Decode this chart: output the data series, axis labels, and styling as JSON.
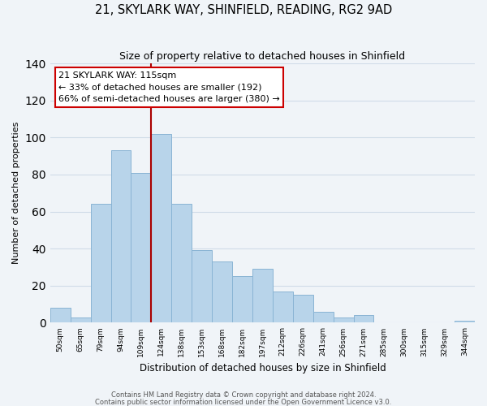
{
  "title": "21, SKYLARK WAY, SHINFIELD, READING, RG2 9AD",
  "subtitle": "Size of property relative to detached houses in Shinfield",
  "xlabel": "Distribution of detached houses by size in Shinfield",
  "ylabel": "Number of detached properties",
  "bar_labels": [
    "50sqm",
    "65sqm",
    "79sqm",
    "94sqm",
    "109sqm",
    "124sqm",
    "138sqm",
    "153sqm",
    "168sqm",
    "182sqm",
    "197sqm",
    "212sqm",
    "226sqm",
    "241sqm",
    "256sqm",
    "271sqm",
    "285sqm",
    "300sqm",
    "315sqm",
    "329sqm",
    "344sqm"
  ],
  "bar_values": [
    8,
    3,
    64,
    93,
    81,
    102,
    64,
    39,
    33,
    25,
    29,
    17,
    15,
    6,
    3,
    4,
    0,
    0,
    0,
    0,
    1
  ],
  "bar_color": "#b8d4ea",
  "bar_edge_color": "#8ab4d4",
  "vline_color": "#aa0000",
  "ylim": [
    0,
    140
  ],
  "yticks": [
    0,
    20,
    40,
    60,
    80,
    100,
    120,
    140
  ],
  "annotation_line1": "21 SKYLARK WAY: 115sqm",
  "annotation_line2": "← 33% of detached houses are smaller (192)",
  "annotation_line3": "66% of semi-detached houses are larger (380) →",
  "annotation_box_color": "#ffffff",
  "annotation_box_edge": "#cc0000",
  "bg_color": "#f0f4f8",
  "grid_color": "#d0dce8",
  "footnote1": "Contains HM Land Registry data © Crown copyright and database right 2024.",
  "footnote2": "Contains public sector information licensed under the Open Government Licence v3.0."
}
